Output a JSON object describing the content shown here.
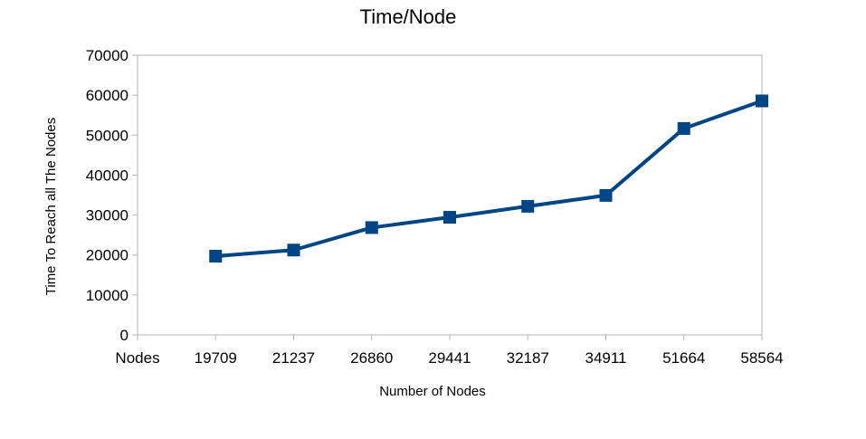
{
  "chart_data": {
    "type": "line",
    "title": "Time/Node",
    "xlabel": "Number of Nodes",
    "ylabel": "Time To Reach all The Nodes",
    "categories": [
      "Nodes",
      "19709",
      "21237",
      "26860",
      "29441",
      "32187",
      "34911",
      "51664",
      "58564"
    ],
    "series": [
      {
        "values": [
          null,
          19709,
          21237,
          26860,
          29441,
          32187,
          34911,
          51664,
          58564
        ]
      }
    ],
    "ylim": [
      0,
      70000
    ],
    "yticks": [
      "0",
      "10000",
      "20000",
      "30000",
      "40000",
      "50000",
      "60000",
      "70000"
    ],
    "grid": false,
    "legend": "none",
    "line_color": "#004586",
    "marker": "square"
  }
}
